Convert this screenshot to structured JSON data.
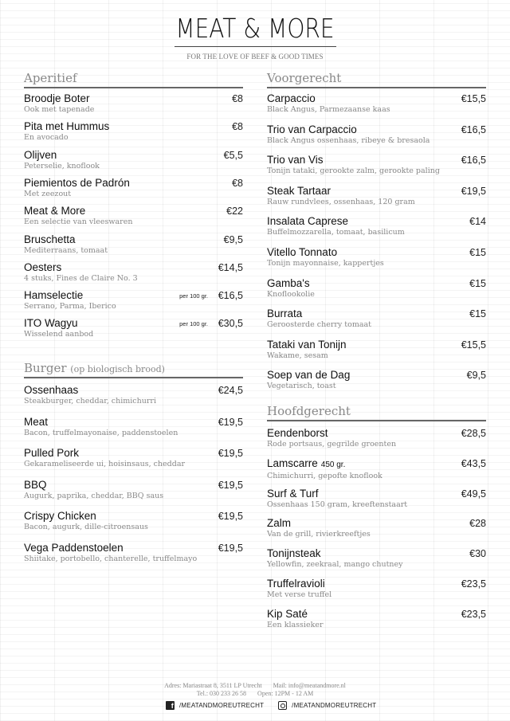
{
  "header": {
    "brand": "MEAT & MORE",
    "tagline": "FOR THE LOVE OF BEEF & GOOD TIMES"
  },
  "sections": [
    {
      "title": "Aperitief",
      "subtitle": "",
      "items": [
        {
          "name": "Broodje Boter",
          "desc": "Ook met tapenade",
          "price": "€8"
        },
        {
          "name": "Pita met Hummus",
          "desc": "En avocado",
          "price": "€8"
        },
        {
          "name": "Olijven",
          "desc": "Peterselie, knoflook",
          "price": "€5,5"
        },
        {
          "name": "Piemientos de Padrón",
          "desc": "Met zeezout",
          "price": "€8"
        },
        {
          "name": "Meat & More",
          "desc": "Een selectie van vleeswaren",
          "price": "€22"
        },
        {
          "name": "Bruschetta",
          "desc": "Mediterraans, tomaat",
          "price": "€9,5"
        },
        {
          "name": "Oesters",
          "desc": "4 stuks, Fines de Claire No. 3",
          "price": "€14,5"
        },
        {
          "name": "Hamselectie",
          "desc": "Serrano, Parma, Iberico",
          "price": "€16,5",
          "unit": "per 100 gr."
        },
        {
          "name": "ITO Wagyu",
          "desc": "Wisselend aanbod",
          "price": "€30,5",
          "unit": "per 100 gr."
        }
      ]
    },
    {
      "title": "Burger",
      "subtitle": "(op biologisch brood)",
      "items": [
        {
          "name": "Ossenhaas",
          "desc": "Steakburger, cheddar, chimichurri",
          "price": "€24,5"
        },
        {
          "name": "Meat",
          "desc": "Bacon, truffelmayonaise, paddenstoelen",
          "price": "€19,5"
        },
        {
          "name": "Pulled Pork",
          "desc": "Gekarameliseerde ui, hoisinsaus, cheddar",
          "price": "€19,5"
        },
        {
          "name": "BBQ",
          "desc": "Augurk, paprika, cheddar, BBQ saus",
          "price": "€19,5"
        },
        {
          "name": "Crispy Chicken",
          "desc": "Bacon, augurk, dille-citroensaus",
          "price": "€19,5"
        },
        {
          "name": "Vega Paddenstoelen",
          "desc": "Shiitake, portobello, chanterelle, truffelmayo",
          "price": "€19,5"
        }
      ]
    },
    {
      "title": "Voorgerecht",
      "subtitle": "",
      "items": [
        {
          "name": "Carpaccio",
          "desc": "Black Angus, Parmezaanse kaas",
          "price": "€15,5"
        },
        {
          "name": "Trio van Carpaccio",
          "desc": "Black Angus ossenhaas, ribeye & bresaola",
          "price": "€16,5"
        },
        {
          "name": "Trio van Vis",
          "desc": "Tonijn tataki, gerookte zalm, gerookte paling",
          "price": "€16,5"
        },
        {
          "name": "Steak Tartaar",
          "desc": "Rauw rundvlees, ossenhaas, 120 gram",
          "price": "€19,5"
        },
        {
          "name": "Insalata Caprese",
          "desc": "Buffelmozzarella, tomaat, basilicum",
          "price": "€14"
        },
        {
          "name": "Vitello Tonnato",
          "desc": "Tonijn mayonnaise, kappertjes",
          "price": "€15"
        },
        {
          "name": "Gamba's",
          "desc": "Knoflookolie",
          "price": "€15"
        },
        {
          "name": "Burrata",
          "desc": "Geroosterde cherry tomaat",
          "price": "€15"
        },
        {
          "name": "Tataki van Tonijn",
          "desc": "Wakame, sesam",
          "price": "€15,5"
        },
        {
          "name": "Soep van de Dag",
          "desc": "Vegetarisch, toast",
          "price": "€9,5"
        }
      ]
    },
    {
      "title": "Hoofdgerecht",
      "subtitle": "",
      "items": [
        {
          "name": "Eendenborst",
          "desc": "Rode portsaus, gegrilde groenten",
          "price": "€28,5"
        },
        {
          "name": "Lamscarre",
          "weight": "450 gr.",
          "desc": "Chimichurri, gepofte knoflook",
          "price": "€43,5"
        },
        {
          "name": "Surf & Turf",
          "desc": "Ossenhaas 150 gram, kreeftenstaart",
          "price": "€49,5"
        },
        {
          "name": "Zalm",
          "desc": "Van de grill, rivierkreeftjes",
          "price": "€28"
        },
        {
          "name": "Tonijnsteak",
          "desc": "Yellowfin, zeekraal, mango chutney",
          "price": "€30"
        },
        {
          "name": "Truffelravioli",
          "desc": "Met verse truffel",
          "price": "€23,5"
        },
        {
          "name": "Kip Saté",
          "desc": "Een klassieker",
          "price": "€23,5"
        }
      ]
    }
  ],
  "footer": {
    "address": "Adres: Mariastraat 8, 3511 LP Utrecht",
    "mail": "Mail: info@meatandmore.nl",
    "phone": "Tel.: 030 233 26 58",
    "hours": "Open: 12PM - 12 AM",
    "facebook": "/MEATANDMOREUTRECHT",
    "instagram": "/MEATANDMOREUTRECHT",
    "facebook_icon": "facebook-icon",
    "instagram_icon": "instagram-icon"
  }
}
